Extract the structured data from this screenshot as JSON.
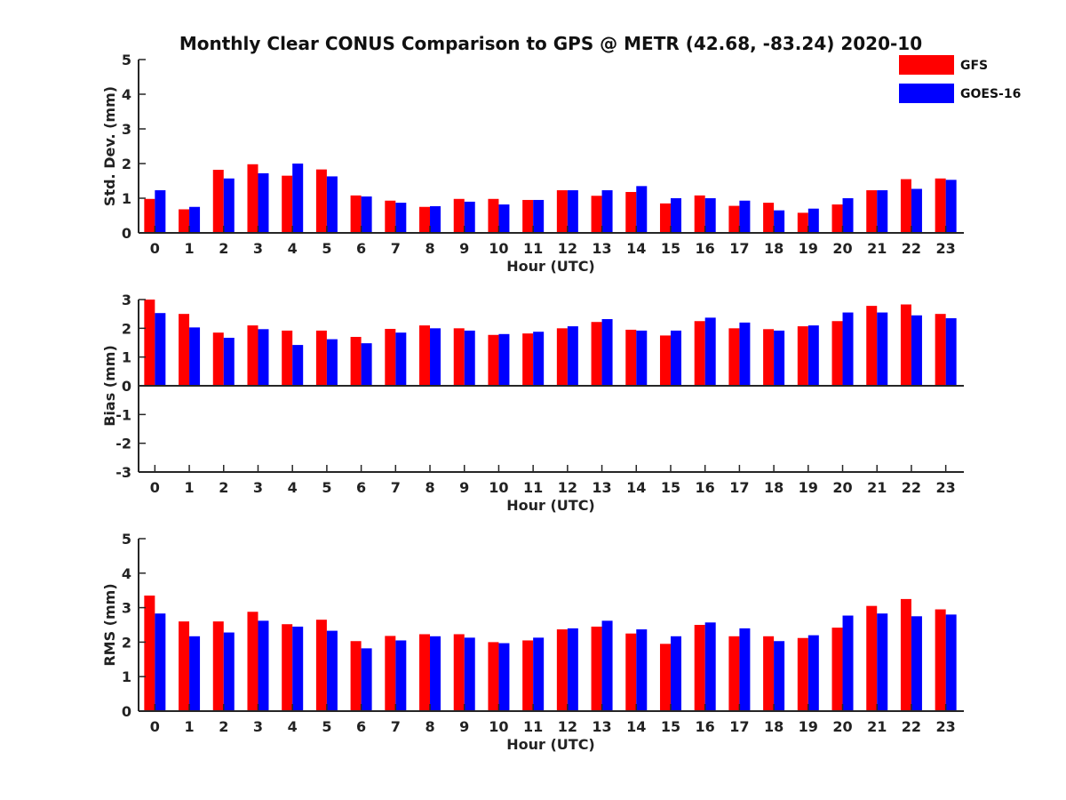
{
  "title": "Monthly Clear CONUS Comparison to GPS @ METR (42.68, -83.24) 2020-10",
  "legend": [
    {
      "name": "GFS",
      "color": "#ff0000"
    },
    {
      "name": "GOES-16",
      "color": "#0000ff"
    }
  ],
  "chart_data": [
    {
      "type": "bar",
      "xlabel": "Hour (UTC)",
      "ylabel": "Std. Dev. (mm)",
      "ylim": [
        0,
        5
      ],
      "yticks": [
        0,
        1,
        2,
        3,
        4,
        5
      ],
      "categories": [
        "0",
        "1",
        "2",
        "3",
        "4",
        "5",
        "6",
        "7",
        "8",
        "9",
        "10",
        "11",
        "12",
        "13",
        "14",
        "15",
        "16",
        "17",
        "18",
        "19",
        "20",
        "21",
        "22",
        "23"
      ],
      "series": [
        {
          "name": "GFS",
          "color": "#ff0000",
          "values": [
            0.98,
            0.68,
            1.82,
            1.98,
            1.65,
            1.83,
            1.08,
            0.93,
            0.75,
            0.98,
            0.98,
            0.95,
            1.23,
            1.07,
            1.18,
            0.85,
            1.08,
            0.78,
            0.87,
            0.58,
            0.82,
            1.23,
            1.55,
            1.57
          ]
        },
        {
          "name": "GOES-16",
          "color": "#0000ff",
          "values": [
            1.23,
            0.75,
            1.57,
            1.72,
            2.0,
            1.63,
            1.05,
            0.87,
            0.77,
            0.9,
            0.82,
            0.95,
            1.23,
            1.23,
            1.35,
            1.0,
            1.0,
            0.93,
            0.65,
            0.7,
            1.0,
            1.23,
            1.27,
            1.53
          ]
        }
      ]
    },
    {
      "type": "bar",
      "xlabel": "Hour (UTC)",
      "ylabel": "Bias (mm)",
      "ylim": [
        -3,
        3
      ],
      "yticks": [
        -3,
        -2,
        -1,
        0,
        1,
        2,
        3
      ],
      "categories": [
        "0",
        "1",
        "2",
        "3",
        "4",
        "5",
        "6",
        "7",
        "8",
        "9",
        "10",
        "11",
        "12",
        "13",
        "14",
        "15",
        "16",
        "17",
        "18",
        "19",
        "20",
        "21",
        "22",
        "23"
      ],
      "series": [
        {
          "name": "GFS",
          "color": "#ff0000",
          "values": [
            3.0,
            2.5,
            1.85,
            2.1,
            1.92,
            1.92,
            1.7,
            1.98,
            2.1,
            2.0,
            1.77,
            1.82,
            2.0,
            2.22,
            1.95,
            1.75,
            2.25,
            2.0,
            1.97,
            2.07,
            2.25,
            2.78,
            2.83,
            2.5
          ]
        },
        {
          "name": "GOES-16",
          "color": "#0000ff",
          "values": [
            2.53,
            2.03,
            1.67,
            1.97,
            1.42,
            1.62,
            1.48,
            1.85,
            2.0,
            1.92,
            1.8,
            1.88,
            2.07,
            2.32,
            1.92,
            1.92,
            2.37,
            2.2,
            1.92,
            2.1,
            2.55,
            2.55,
            2.45,
            2.35
          ]
        }
      ]
    },
    {
      "type": "bar",
      "xlabel": "Hour (UTC)",
      "ylabel": "RMS (mm)",
      "ylim": [
        0,
        5
      ],
      "yticks": [
        0,
        1,
        2,
        3,
        4,
        5
      ],
      "categories": [
        "0",
        "1",
        "2",
        "3",
        "4",
        "5",
        "6",
        "7",
        "8",
        "9",
        "10",
        "11",
        "12",
        "13",
        "14",
        "15",
        "16",
        "17",
        "18",
        "19",
        "20",
        "21",
        "22",
        "23"
      ],
      "series": [
        {
          "name": "GFS",
          "color": "#ff0000",
          "values": [
            3.35,
            2.6,
            2.6,
            2.88,
            2.52,
            2.65,
            2.03,
            2.18,
            2.23,
            2.23,
            2.0,
            2.05,
            2.37,
            2.45,
            2.25,
            1.95,
            2.5,
            2.17,
            2.17,
            2.12,
            2.42,
            3.05,
            3.25,
            2.95
          ]
        },
        {
          "name": "GOES-16",
          "color": "#0000ff",
          "values": [
            2.83,
            2.17,
            2.28,
            2.62,
            2.45,
            2.33,
            1.82,
            2.05,
            2.17,
            2.13,
            1.97,
            2.13,
            2.4,
            2.62,
            2.37,
            2.17,
            2.57,
            2.4,
            2.03,
            2.2,
            2.77,
            2.83,
            2.75,
            2.8
          ]
        }
      ]
    }
  ]
}
